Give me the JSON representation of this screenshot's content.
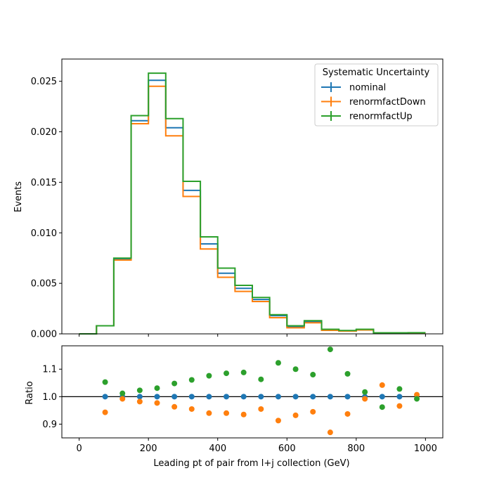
{
  "chart_data": [
    {
      "type": "line",
      "title": "",
      "xlabel": "",
      "ylabel": "Events",
      "xlim": [
        -50,
        1050
      ],
      "ylim": [
        0,
        0.0272
      ],
      "x_ticks": [
        0,
        200,
        400,
        600,
        800,
        1000
      ],
      "y_ticks": [
        0.0,
        0.005,
        0.01,
        0.015,
        0.02,
        0.025
      ],
      "y_tick_labels": [
        "0.000",
        "0.005",
        "0.010",
        "0.015",
        "0.020",
        "0.025"
      ],
      "bin_edges": [
        0,
        50,
        100,
        150,
        200,
        250,
        300,
        350,
        400,
        450,
        500,
        550,
        600,
        650,
        700,
        750,
        800,
        850,
        900,
        950,
        1000
      ],
      "legend": {
        "title": "Systematic Uncertainty",
        "placement": "top-right"
      },
      "series": [
        {
          "name": "nominal",
          "color": "#1f77b4",
          "values": [
            0.0,
            0.0008,
            0.0074,
            0.0211,
            0.0251,
            0.0204,
            0.0142,
            0.0089,
            0.006,
            0.0045,
            0.0034,
            0.0018,
            0.0007,
            0.0012,
            0.0004,
            0.0003,
            0.0004,
            0.0001,
            0.0001,
            0.0001
          ]
        },
        {
          "name": "renormfactDown",
          "color": "#ff7f0e",
          "values": [
            0.0,
            0.0008,
            0.0073,
            0.0208,
            0.0245,
            0.0196,
            0.0136,
            0.0084,
            0.0056,
            0.0042,
            0.0032,
            0.0016,
            0.0006,
            0.0011,
            0.00035,
            0.00028,
            0.00038,
            0.0001,
            0.0001,
            0.0001
          ]
        },
        {
          "name": "renormfactUp",
          "color": "#2ca02c",
          "values": [
            0.0,
            0.0008,
            0.0075,
            0.0216,
            0.0258,
            0.0213,
            0.0151,
            0.0096,
            0.0065,
            0.0048,
            0.0036,
            0.0019,
            0.0008,
            0.0013,
            0.00045,
            0.00033,
            0.00045,
            0.0001,
            0.0001,
            0.00011
          ]
        }
      ]
    },
    {
      "type": "scatter",
      "title": "",
      "xlabel": "Leading pt of pair from l+j collection (GeV)",
      "ylabel": "Ratio",
      "xlim": [
        -50,
        1050
      ],
      "ylim": [
        0.85,
        1.185
      ],
      "x_ticks": [
        0,
        200,
        400,
        600,
        800,
        1000
      ],
      "x_tick_labels": [
        "0",
        "200",
        "400",
        "600",
        "800",
        "1000"
      ],
      "y_ticks": [
        0.9,
        1.0,
        1.1
      ],
      "y_tick_labels": [
        "0.9",
        "1.0",
        "1.1"
      ],
      "reference_line": 1.0,
      "x": [
        75,
        125,
        175,
        225,
        275,
        325,
        375,
        425,
        475,
        525,
        575,
        625,
        675,
        725,
        775,
        825,
        875,
        925,
        975
      ],
      "series": [
        {
          "name": "nominal",
          "color": "#1f77b4",
          "values": [
            1.0,
            1.0,
            1.0,
            1.0,
            1.0,
            1.0,
            1.0,
            1.0,
            1.0,
            1.0,
            1.0,
            1.0,
            1.0,
            1.0,
            1.0,
            1.0,
            1.0,
            1.0,
            null
          ]
        },
        {
          "name": "renormfactDown",
          "color": "#ff7f0e",
          "values": [
            0.943,
            0.992,
            0.982,
            0.977,
            0.963,
            0.955,
            0.94,
            0.94,
            0.935,
            0.955,
            0.913,
            0.932,
            0.945,
            0.87,
            0.937,
            0.992,
            1.042,
            0.966,
            1.007
          ]
        },
        {
          "name": "renormfactUp",
          "color": "#2ca02c",
          "values": [
            1.053,
            1.012,
            1.023,
            1.031,
            1.048,
            1.061,
            1.076,
            1.085,
            1.088,
            1.063,
            1.123,
            1.1,
            1.08,
            1.172,
            1.083,
            1.017,
            0.962,
            1.028,
            0.992
          ]
        }
      ]
    }
  ]
}
